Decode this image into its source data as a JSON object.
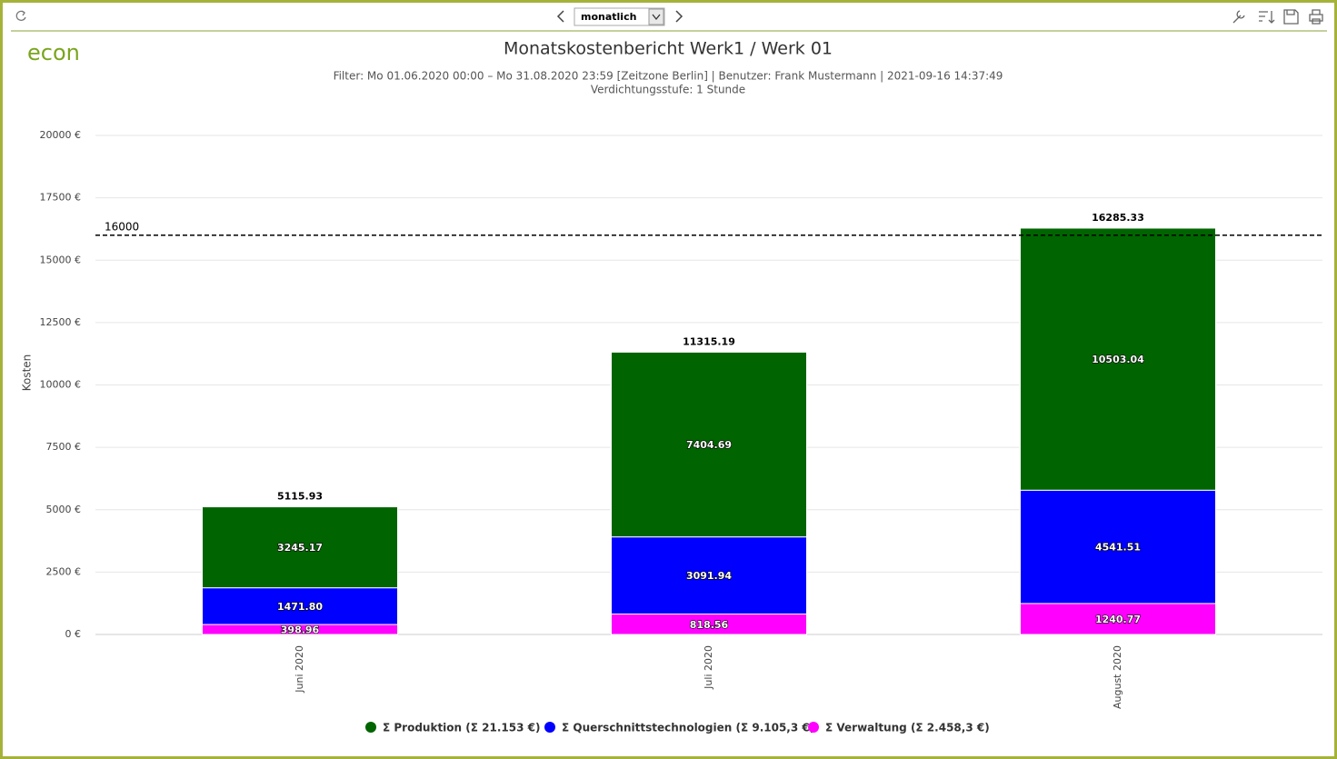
{
  "toolbar": {
    "period": "monatlich"
  },
  "logo": "econ",
  "chart_data": {
    "type": "stacked_bar",
    "title": "Monatskostenbericht Werk1  / Werk 01",
    "subtitle": [
      "Filter: Mo 01.06.2020 00:00 – Mo 31.08.2020 23:59 [Zeitzone Berlin] | Benutzer: Frank Mustermann | 2021-09-16 14:37:49",
      "Verdichtungsstufe: 1 Stunde"
    ],
    "y_label": "Kosten",
    "categories": [
      "Juni 2020",
      "Juli 2020",
      "August 2020"
    ],
    "series": [
      {
        "name": "Σ Produktion (Σ 21.153 €)",
        "color": "#006400",
        "values": [
          3245.17,
          7404.69,
          10503.04
        ],
        "value_labels": [
          "3245.17",
          "7404.69",
          "10503.04"
        ]
      },
      {
        "name": "Σ Querschnittstechnologien (Σ 9.105,3 €)",
        "color": "#0000ff",
        "values": [
          1471.8,
          3091.94,
          4541.51
        ],
        "value_labels": [
          "1471.80",
          "3091.94",
          "4541.51"
        ]
      },
      {
        "name": "Σ Verwaltung (Σ 2.458,3 €)",
        "color": "#ff00ff",
        "values": [
          398.96,
          818.56,
          1240.77
        ],
        "value_labels": [
          "398.96",
          "818.56",
          "1240.77"
        ]
      }
    ],
    "totals": [
      5115.93,
      11315.19,
      16285.33
    ],
    "reference_line": 16000,
    "ylim": [
      0,
      20000
    ],
    "yticks": [
      {
        "value": 0,
        "label": "0 €"
      },
      {
        "value": 2500,
        "label": "2500 €"
      },
      {
        "value": 5000,
        "label": "5000 €"
      },
      {
        "value": 7500,
        "label": "7500 €"
      },
      {
        "value": 10000,
        "label": "10000 €"
      },
      {
        "value": 12500,
        "label": "12500 €"
      },
      {
        "value": 15000,
        "label": "15000 €"
      },
      {
        "value": 17500,
        "label": "17500 €"
      },
      {
        "value": 20000,
        "label": "20000 €"
      }
    ],
    "grid": true
  }
}
